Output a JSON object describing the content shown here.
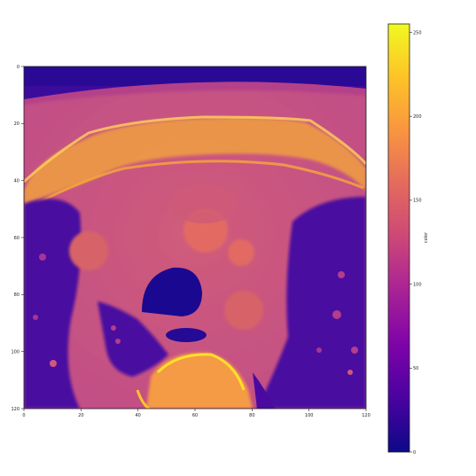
{
  "chart_data": {
    "type": "heatmap",
    "title": "",
    "xlabel": "",
    "ylabel": "",
    "x_ticks": [
      0,
      20,
      40,
      60,
      80,
      100,
      120
    ],
    "y_ticks": [
      0,
      20,
      40,
      60,
      80,
      100,
      120
    ],
    "xlim": [
      0,
      120
    ],
    "ylim": [
      120,
      0
    ],
    "colorbar": {
      "label": "color",
      "ticks": [
        0,
        50,
        100,
        150,
        200,
        250
      ],
      "range": [
        0,
        255
      ],
      "colormap": "plasma"
    },
    "colors": {
      "low": "#0d0887",
      "mid_low": "#7e03a8",
      "mid": "#cc4778",
      "mid_high": "#f89540",
      "high": "#f0f921"
    }
  }
}
